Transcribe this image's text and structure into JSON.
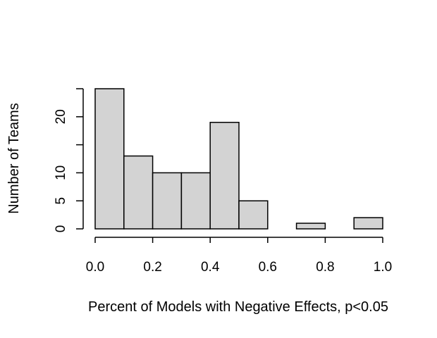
{
  "chart_data": {
    "type": "bar",
    "title": "",
    "xlabel": "Percent of Models with Negative Effects, p<0.05",
    "ylabel": "Number of Teams",
    "bins": [
      {
        "from": 0.0,
        "to": 0.1,
        "count": 25
      },
      {
        "from": 0.1,
        "to": 0.2,
        "count": 13
      },
      {
        "from": 0.2,
        "to": 0.3,
        "count": 10
      },
      {
        "from": 0.3,
        "to": 0.4,
        "count": 10
      },
      {
        "from": 0.4,
        "to": 0.5,
        "count": 19
      },
      {
        "from": 0.5,
        "to": 0.6,
        "count": 5
      },
      {
        "from": 0.6,
        "to": 0.7,
        "count": 0
      },
      {
        "from": 0.7,
        "to": 0.8,
        "count": 1
      },
      {
        "from": 0.8,
        "to": 0.9,
        "count": 0
      },
      {
        "from": 0.9,
        "to": 1.0,
        "count": 2
      }
    ],
    "xlim": [
      0,
      1.0
    ],
    "ylim": [
      0,
      25
    ],
    "xticks": [
      0.0,
      0.2,
      0.4,
      0.6,
      0.8,
      1.0
    ],
    "xtick_labels": [
      "0.0",
      "0.2",
      "0.4",
      "0.6",
      "0.8",
      "1.0"
    ],
    "yticks": [
      0,
      5,
      10,
      15,
      20,
      25
    ],
    "ytick_labels": [
      "0",
      "5",
      "10",
      "",
      "20",
      ""
    ],
    "bar_color": "#d3d3d3",
    "edge_color": "#000000",
    "grid": false
  }
}
